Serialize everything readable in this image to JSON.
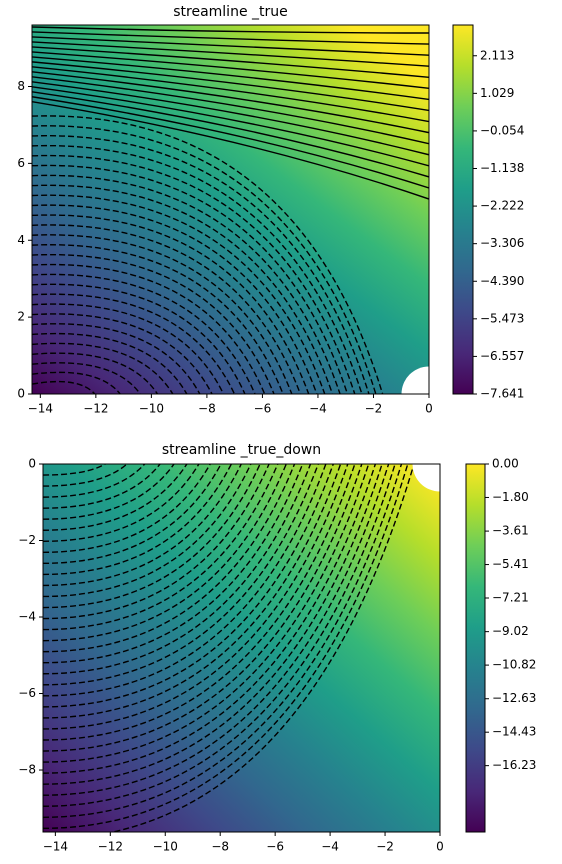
{
  "chart_data": [
    {
      "type": "contour",
      "title": "streamline _true",
      "colormap": "viridis",
      "xlim": [
        -14.3,
        0
      ],
      "ylim": [
        0,
        9.6
      ],
      "xticks": [
        {
          "value": -14,
          "label": "−14"
        },
        {
          "value": -12,
          "label": "−12"
        },
        {
          "value": -10,
          "label": "−10"
        },
        {
          "value": -8,
          "label": "−8"
        },
        {
          "value": -6,
          "label": "−6"
        },
        {
          "value": -4,
          "label": "−4"
        },
        {
          "value": -2,
          "label": "−2"
        },
        0
      ],
      "yticks": [
        0,
        2,
        4,
        6,
        8
      ],
      "clim": [
        -7.641,
        3.0
      ],
      "cticks": [
        {
          "value": -7.641,
          "label": "−7.641"
        },
        {
          "value": -6.557,
          "label": "−6.557"
        },
        {
          "value": -5.473,
          "label": "−5.473"
        },
        {
          "value": -4.39,
          "label": "−4.390"
        },
        {
          "value": -3.306,
          "label": "−3.306"
        },
        {
          "value": -2.222,
          "label": "−2.222"
        },
        {
          "value": -1.138,
          "label": "−1.138"
        },
        {
          "value": -0.054,
          "label": "−0.054"
        },
        1.029,
        2.113
      ]
    },
    {
      "type": "contour",
      "title": "streamline _true_down",
      "colormap": "viridis",
      "xlim": [
        -14.45,
        0
      ],
      "ylim": [
        -9.62,
        0
      ],
      "xticks": [
        {
          "value": -14,
          "label": "−14"
        },
        {
          "value": -12,
          "label": "−12"
        },
        {
          "value": -10,
          "label": "−10"
        },
        {
          "value": -8,
          "label": "−8"
        },
        {
          "value": -6,
          "label": "−6"
        },
        {
          "value": -4,
          "label": "−4"
        },
        {
          "value": -2,
          "label": "−2"
        },
        0
      ],
      "yticks": [
        {
          "value": -8,
          "label": "−8"
        },
        {
          "value": -6,
          "label": "−6"
        },
        {
          "value": -4,
          "label": "−4"
        },
        {
          "value": -2,
          "label": "−2"
        },
        0
      ],
      "clim": [
        -19.8,
        0
      ],
      "cticks": [
        {
          "value": -16.23,
          "label": "−16.23"
        },
        {
          "value": -14.43,
          "label": "−14.43"
        },
        {
          "value": -12.63,
          "label": "−12.63"
        },
        {
          "value": -10.82,
          "label": "−10.82"
        },
        {
          "value": -9.02,
          "label": "−9.02"
        },
        {
          "value": -7.21,
          "label": "−7.21"
        },
        {
          "value": -5.41,
          "label": "−5.41"
        },
        {
          "value": -3.61,
          "label": "−3.61"
        },
        {
          "value": -1.8,
          "label": "−1.80"
        },
        {
          "value": 0,
          "label": "0.00"
        }
      ]
    }
  ]
}
